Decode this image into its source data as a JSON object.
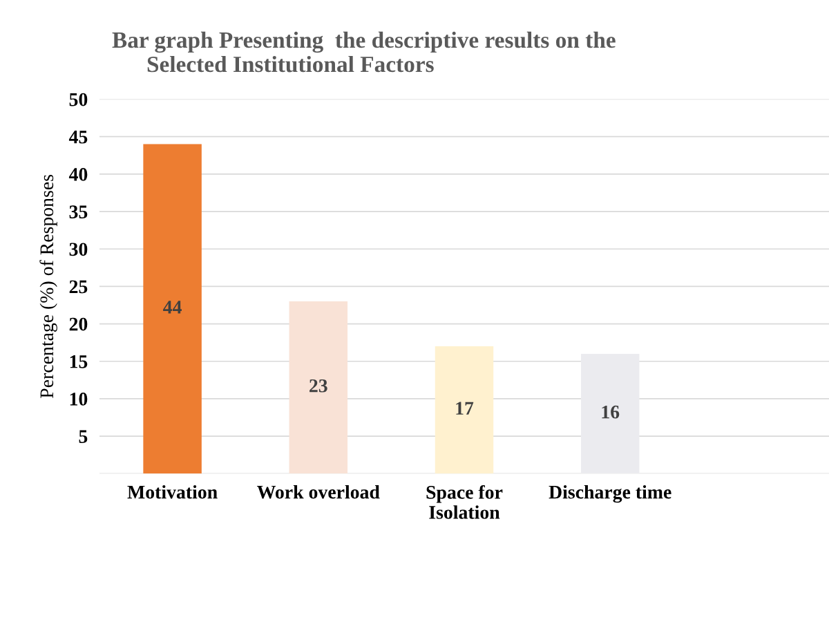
{
  "chart_data": {
    "type": "bar",
    "title": "Bar graph Presenting  the descriptive results on the\n      Selected Institutional Factors",
    "ylabel": "Percentage (%) of Responses",
    "categories": [
      "Motivation",
      "Work overload",
      "Space for\nIsolation",
      "Discharge time"
    ],
    "values": [
      44,
      23,
      17,
      16
    ],
    "colors": [
      "#ed7d31",
      "#f9e2d6",
      "#fff1cf",
      "#ebebef"
    ],
    "data_labels": true,
    "ylim": [
      0,
      50
    ],
    "yticks": [
      {
        "value": 0,
        "label": null
      },
      5,
      10,
      15,
      20,
      25,
      30,
      35,
      40,
      45,
      50
    ],
    "grid": "y"
  }
}
